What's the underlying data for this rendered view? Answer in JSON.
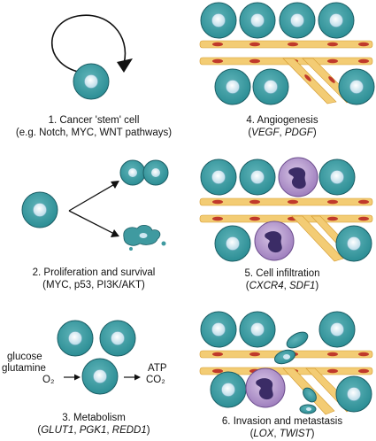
{
  "panels": [
    {
      "title": "1. Cancer 'stem' cell",
      "sub": "(e.g. Notch, MYC, WNT pathways)"
    },
    {
      "title": "2. Proliferation and survival",
      "sub": "(MYC, p53, PI3K/AKT)"
    },
    {
      "title": "3. Metabolism",
      "sub_parts": [
        "GLUT1",
        ", ",
        "PGK1",
        ", ",
        "REDD1"
      ]
    },
    {
      "title": "4. Angiogenesis",
      "sub_parts": [
        "VEGF",
        ", ",
        "PDGF"
      ]
    },
    {
      "title": "5. Cell infiltration",
      "sub_parts": [
        "CXCR4",
        ", ",
        "SDF1"
      ]
    },
    {
      "title": "6. Invasion and metastasis",
      "sub_parts": [
        "LOX",
        ", ",
        "TWIST"
      ]
    }
  ],
  "metabolism_labels": {
    "glucose": "glucose",
    "glutamine": "glutamine",
    "o2": "O₂",
    "atp": "ATP",
    "co2": "CO₂"
  },
  "colors": {
    "cell": "#2c8e95",
    "cell_light": "#5fb3b8",
    "nucleus": "#cfe8f2",
    "immune": "#b69ac9",
    "immune_nucleus": "#3b2c66",
    "vessel_wall": "#e6b04d",
    "blood": "#c0392b"
  }
}
